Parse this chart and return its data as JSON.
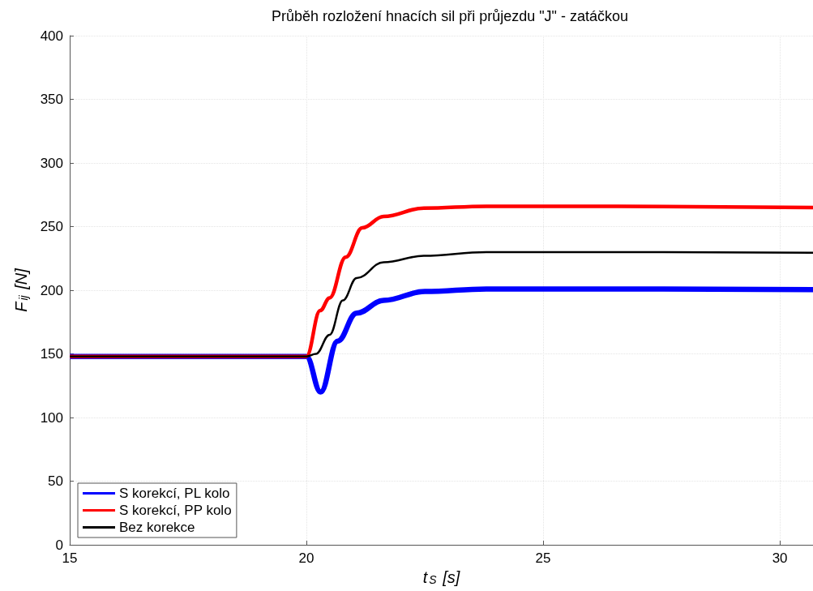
{
  "chart_data": {
    "type": "line",
    "title": "Průběh rozložení hnacích sil při průjezdu \"J\" - zatáčkou",
    "xlabel": "t$_{S}$ [s]",
    "ylabel": "F$_{ij}$ [N]",
    "xlim": [
      15,
      30.7
    ],
    "xticks": [
      15,
      20,
      25,
      30
    ],
    "ylim": [
      0,
      400
    ],
    "yticks": [
      0,
      50,
      100,
      150,
      200,
      250,
      300,
      350,
      400
    ],
    "grid": true,
    "legend": "bottom left",
    "line_style": "solid",
    "marker": "none",
    "series": [
      {
        "name": "S korekcí, PL kolo",
        "color": "#0000ff",
        "x": [
          15,
          20,
          20.3,
          20.66,
          21.06,
          21.63,
          22.5,
          23.8,
          26,
          30.7
        ],
        "values": [
          148,
          148,
          120,
          160,
          182,
          192,
          199,
          201,
          201,
          200.5
        ]
      },
      {
        "name": "S korekcí, PP kolo",
        "color": "#ff0000",
        "x": [
          15,
          20,
          20.29,
          20.49,
          20.83,
          21.18,
          21.63,
          22.48,
          23.8,
          26,
          30.7
        ],
        "values": [
          148,
          148,
          184,
          194,
          226,
          249,
          258,
          264.5,
          266,
          266,
          265
        ]
      },
      {
        "name": "Bez korekce",
        "color": "#000000",
        "x": [
          15,
          20,
          20.2,
          20.49,
          20.77,
          21.06,
          21.63,
          22.48,
          23.8,
          26,
          30.7
        ],
        "values": [
          148,
          148,
          150,
          165,
          192,
          209.5,
          222,
          227,
          230,
          230,
          229.5
        ]
      }
    ]
  }
}
